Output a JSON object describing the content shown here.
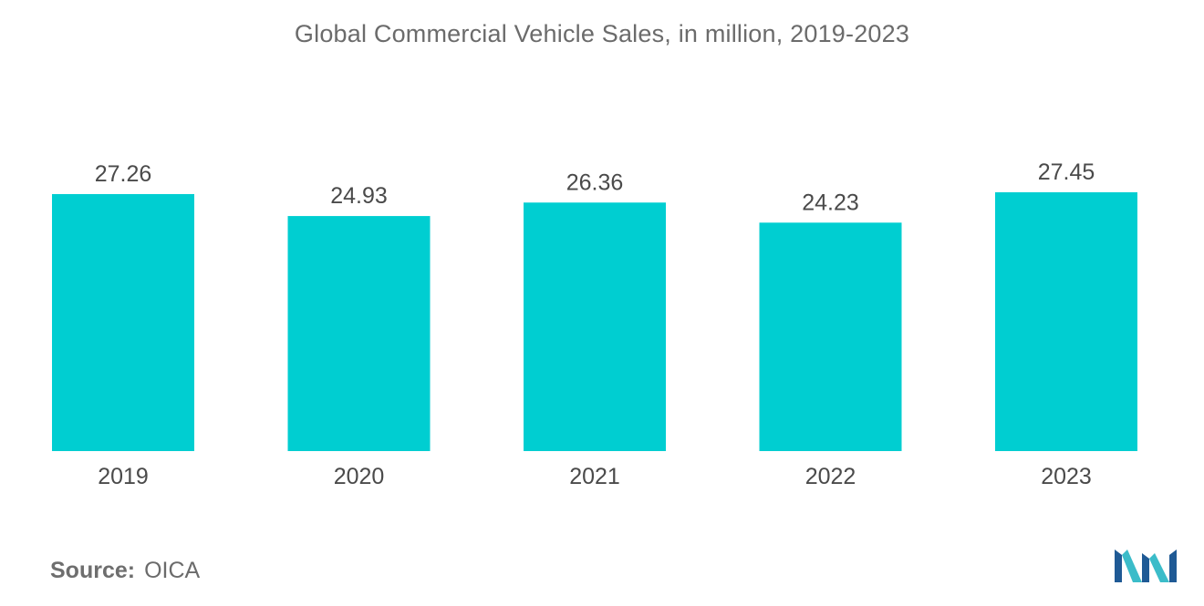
{
  "chart_data": {
    "type": "bar",
    "title": "Global Commercial Vehicle Sales, in million, 2019-2023",
    "categories": [
      "2019",
      "2020",
      "2021",
      "2022",
      "2023"
    ],
    "values": [
      27.26,
      24.93,
      26.36,
      24.23,
      27.45
    ],
    "value_labels": [
      "27.26",
      "24.93",
      "26.36",
      "24.23",
      "27.45"
    ],
    "xlabel": "",
    "ylabel": "",
    "ylim": [
      0,
      27.45
    ],
    "grid": false,
    "legend": "none",
    "bar_color": "#00ced1"
  },
  "source": {
    "label": "Source:",
    "value": "OICA"
  },
  "colors": {
    "title_text": "#6b6b6b",
    "label_text": "#4a4a4a",
    "logo_blue": "#1f5a95",
    "logo_teal": "#3bbcc9"
  }
}
